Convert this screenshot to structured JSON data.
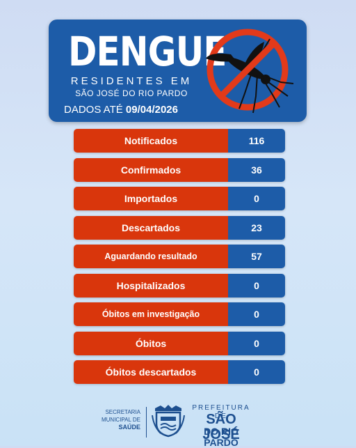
{
  "header": {
    "title": "DENGUE",
    "subtitle_line1": "RESIDENTES EM",
    "subtitle_line2": "SÃO JOSÉ DO RIO PARDO",
    "date_prefix": "DADOS ATÉ",
    "date": "09/04/2026",
    "icon": "no-mosquito-icon"
  },
  "rows": [
    {
      "label": "Notificados",
      "value": "116"
    },
    {
      "label": "Confirmados",
      "value": "36"
    },
    {
      "label": "Importados",
      "value": "0"
    },
    {
      "label": "Descartados",
      "value": "23"
    },
    {
      "label": "Aguardando resultado",
      "value": "57"
    },
    {
      "label": "Hospitalizados",
      "value": "0"
    },
    {
      "label": "Óbitos em investigação",
      "value": "0"
    },
    {
      "label": "Óbitos",
      "value": "0"
    },
    {
      "label": "Óbitos descartados",
      "value": "0"
    }
  ],
  "footer": {
    "secretaria_line1": "SECRETARIA",
    "secretaria_line2": "MUNICIPAL DE",
    "secretaria_line3": "SAÚDE",
    "prefeitura_top": "PREFEITURA DE",
    "prefeitura_city": "SÃO JOSÉ",
    "prefeitura_rio": "DO RIO PARDO",
    "crest": "city-crest-icon"
  },
  "colors": {
    "blue": "#1d5ca8",
    "red": "#d9360c",
    "dark_blue": "#1d4f8f"
  }
}
